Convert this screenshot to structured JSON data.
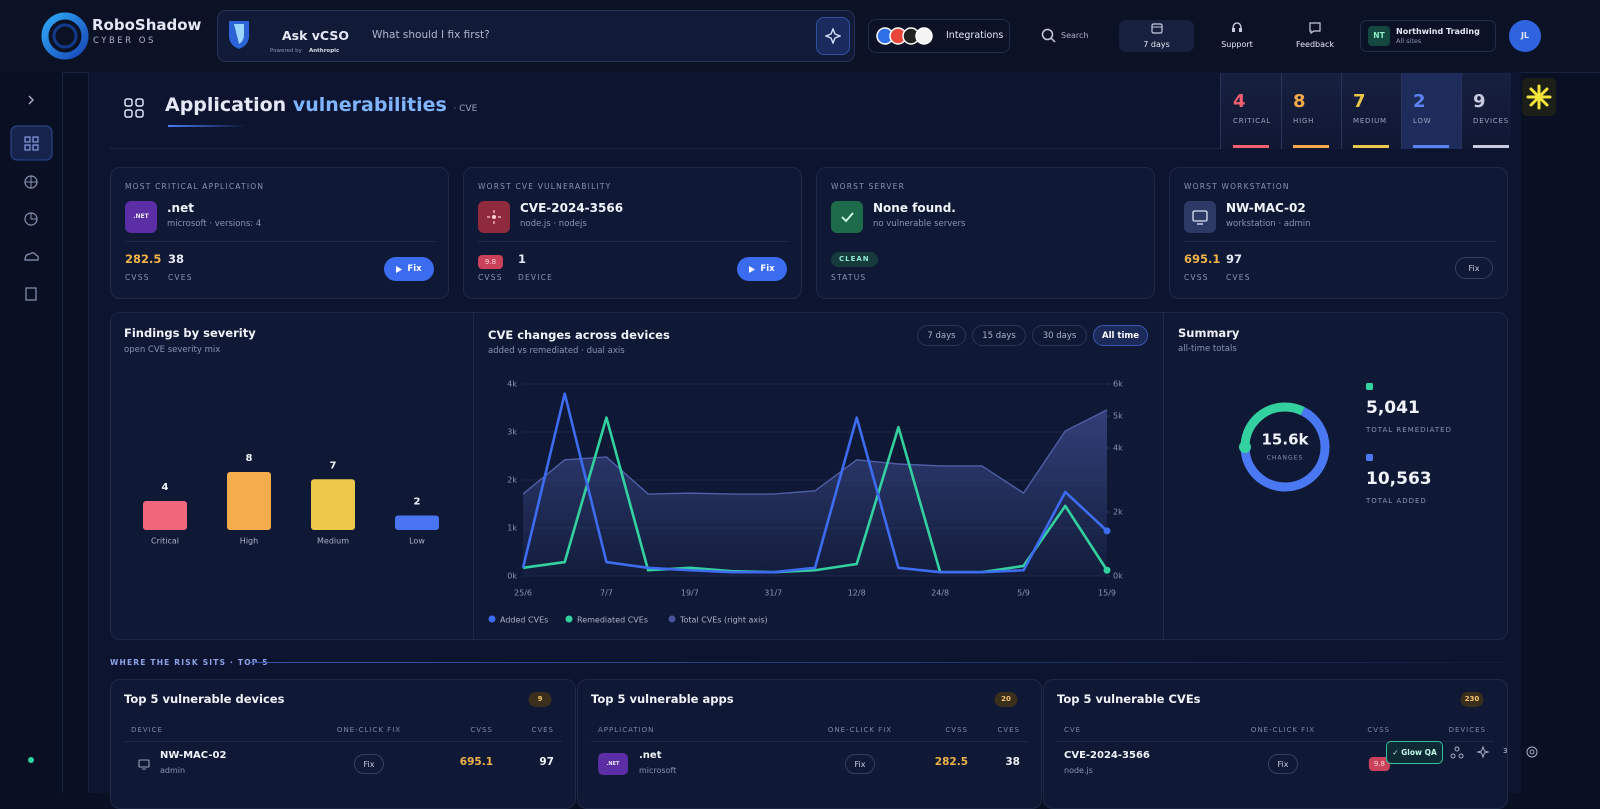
{
  "header": {
    "brand": "RoboShadow",
    "brand_sub": "CYBER OS",
    "assistant": "Ask vCSO",
    "powered_by": "Powered by",
    "provider": "Anthropic",
    "prompt": "What should I fix first?",
    "integrations": "Integrations",
    "search": "Search",
    "period": "7 days",
    "support": "Support",
    "feedback": "Feedback",
    "org_initials": "NT",
    "org_name": "Northwind Trading",
    "org_sites": "All sites",
    "user_initials": "JL"
  },
  "page": {
    "title": "Application",
    "title_accent": "vulnerabilities",
    "title_suffix": "· CVE"
  },
  "severity_tiles": [
    {
      "count": 4,
      "label": "CRITICAL",
      "color": "#f0606e"
    },
    {
      "count": 8,
      "label": "HIGH",
      "color": "#f5a94a"
    },
    {
      "count": 7,
      "label": "MEDIUM",
      "color": "#eac64a"
    },
    {
      "count": 2,
      "label": "LOW",
      "color": "#5b84f0"
    },
    {
      "count": 9,
      "label": "DEVICES",
      "color": "#c8cbe0"
    }
  ],
  "cards": [
    {
      "label": "MOST CRITICAL APPLICATION",
      "icon": ".NET",
      "name": ".net",
      "detail": "microsoft · versions: 4",
      "stats": [
        {
          "value": 282.5,
          "label": "CVSS"
        },
        {
          "value": 38,
          "label": "CVES"
        }
      ],
      "action": "Fix"
    },
    {
      "label": "WORST CVE VULNERABILITY",
      "name": "CVE-2024-3566",
      "detail": "node.js · nodejs",
      "stats": [
        {
          "value": 9.8,
          "label": "CVSS"
        },
        {
          "value": 1,
          "label": "DEVICE"
        }
      ],
      "action": "Fix"
    },
    {
      "label": "WORST SERVER",
      "name": "None found.",
      "detail": "no vulnerable servers",
      "badge": "CLEAN",
      "badge_label": "STATUS"
    },
    {
      "label": "WORST WORKSTATION",
      "name": "NW-MAC-02",
      "detail": "workstation · admin",
      "stats": [
        {
          "value": 695.1,
          "label": "CVSS"
        },
        {
          "value": 97,
          "label": "CVES"
        }
      ],
      "action": "Fix"
    }
  ],
  "chart_data": [
    {
      "type": "bar",
      "title": "Findings by severity",
      "subtitle": "open CVE severity mix",
      "categories": [
        "Critical",
        "High",
        "Medium",
        "Low"
      ],
      "values": [
        4,
        8,
        7,
        2
      ],
      "colors": [
        "#f0667a",
        "#f4ac4c",
        "#ecc94b",
        "#4a74f2"
      ]
    },
    {
      "type": "line",
      "title": "CVE changes across devices",
      "subtitle": "added vs remediated · dual axis",
      "ranges": [
        "7 days",
        "15 days",
        "30 days",
        "All time"
      ],
      "active_range": "All time",
      "categories": [
        "25/6",
        null,
        "7/7",
        null,
        "19/7",
        null,
        "31/7",
        null,
        "12/8",
        null,
        "24/8",
        null,
        "5/9",
        null,
        "15/9"
      ],
      "series": [
        {
          "name": "Added CVEs",
          "color": "#3e6cf0",
          "values": [
            170,
            3800,
            290,
            170,
            120,
            80,
            80,
            170,
            3300,
            170,
            80,
            80,
            120,
            1750,
            940
          ]
        },
        {
          "name": "Remediated CVEs",
          "color": "#34d1a0",
          "values": [
            170,
            290,
            3300,
            120,
            170,
            100,
            80,
            120,
            250,
            3100,
            80,
            80,
            210,
            1460,
            120
          ]
        },
        {
          "name": "Total CVEs (right axis)",
          "color": "#3d4c8e",
          "axis": "y2",
          "area": true,
          "values": [
            2560,
            3630,
            3720,
            2560,
            2590,
            2560,
            2560,
            2660,
            3630,
            3500,
            3440,
            3440,
            2590,
            4530,
            5190
          ]
        }
      ],
      "ylim": [
        0,
        4000
      ],
      "yticks": [
        {
          "value": 0,
          "label": "0k"
        },
        {
          "value": 1000,
          "label": "1k"
        },
        {
          "value": 2000,
          "label": "2k"
        },
        {
          "value": 3000,
          "label": "3k"
        },
        {
          "value": 4000,
          "label": "4k"
        }
      ],
      "y2lim": [
        0,
        6000
      ],
      "y2ticks": [
        {
          "value": 0,
          "label": "0k"
        },
        {
          "value": 2000,
          "label": "2k"
        },
        {
          "value": 4000,
          "label": "4k"
        },
        {
          "value": 5000,
          "label": "5k"
        },
        {
          "value": 6000,
          "label": "6k"
        }
      ],
      "grid": true
    },
    {
      "type": "donut",
      "title": "Summary",
      "subtitle": "all-time totals",
      "center_label": "15.6k",
      "center_caption": "CHANGES",
      "categories": [
        "TOTAL REMEDIATED",
        "TOTAL ADDED"
      ],
      "values": [
        5041,
        10563
      ],
      "value_labels": [
        "5,041",
        "10,563"
      ],
      "colors": [
        "#34d1a0",
        "#4a78f2"
      ]
    }
  ],
  "section_label": "WHERE THE RISK SITS · TOP 5",
  "tables": [
    {
      "title": "Top 5 vulnerable devices",
      "count": 9,
      "columns": [
        "DEVICE",
        "ONE-CLICK FIX",
        "CVSS",
        "CVES"
      ],
      "rows": [
        {
          "name": "NW-MAC-02",
          "detail": "admin",
          "action": "Fix",
          "cvss": 695.1,
          "count": 97
        }
      ]
    },
    {
      "title": "Top 5 vulnerable apps",
      "count": 20,
      "columns": [
        "APPLICATION",
        "ONE-CLICK FIX",
        "CVSS",
        "CVES"
      ],
      "rows": [
        {
          "icon": ".NET",
          "name": ".net",
          "detail": "microsoft",
          "action": "Fix",
          "cvss": 282.5,
          "count": 38
        }
      ]
    },
    {
      "title": "Top 5 vulnerable CVEs",
      "count": 230,
      "columns": [
        "CVE",
        "ONE-CLICK FIX",
        "CVSS",
        "DEVICES"
      ],
      "rows": [
        {
          "name": "CVE-2024-3566",
          "detail": "node.js",
          "action": "Fix",
          "cvss": 9.8
        }
      ]
    }
  ],
  "footer": {
    "qa": "✓ Glow QA",
    "badge": "3"
  }
}
